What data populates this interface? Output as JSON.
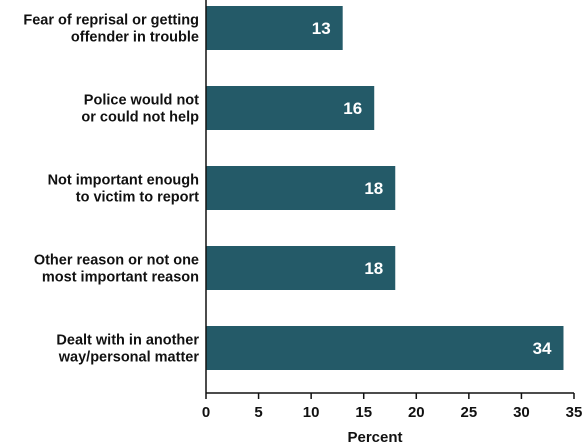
{
  "colors": {
    "bar": "#245a68",
    "axis": "#111111",
    "label_on_bar": "#ffffff"
  },
  "chart_data": {
    "type": "bar",
    "orientation": "horizontal",
    "categories": [
      [
        "Fear of reprisal or getting",
        "offender in trouble"
      ],
      [
        "Police would not",
        "or could not help"
      ],
      [
        "Not important enough",
        "to victim to report"
      ],
      [
        "Other reason or not one",
        "most important reason"
      ],
      [
        "Dealt with in another",
        "way/personal matter"
      ]
    ],
    "values": [
      13,
      16,
      18,
      18,
      34
    ],
    "data_labels": [
      "13",
      "16",
      "18",
      "18",
      "34"
    ],
    "xlabel": "Percent",
    "ylabel": "",
    "xlim": [
      0,
      35
    ],
    "xticks": [
      0,
      5,
      10,
      15,
      20,
      25,
      30,
      35
    ],
    "grid": false,
    "legend": "none"
  }
}
